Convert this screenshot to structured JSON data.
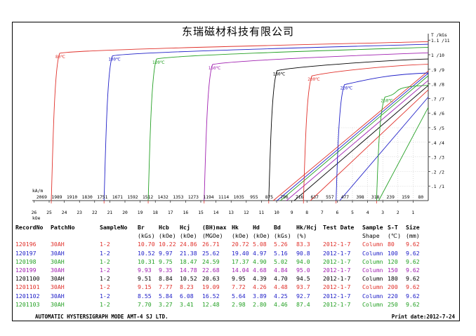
{
  "title": "东瑞磁材科技有限公司",
  "chart_data": {
    "type": "line",
    "xlabel_top": "kA/m",
    "xlabel_bottom": "kOe",
    "ylabel": "T /kGs",
    "x_ticks_kOe": [
      "26",
      "25",
      "24",
      "23",
      "22",
      "21",
      "20",
      "19",
      "18",
      "17",
      "16",
      "15",
      "14",
      "13",
      "12",
      "11",
      "10",
      "9",
      "8",
      "7",
      "6",
      "5",
      "4",
      "3",
      "2",
      "1"
    ],
    "x_ticks_kAm": [
      "2069",
      "1989",
      "1910",
      "1830",
      "1751",
      "1671",
      "1592",
      "1512",
      "1432",
      "1353",
      "1273",
      "1194",
      "1114",
      "1035",
      "955",
      "875",
      "796",
      "716",
      "637",
      "557",
      "477",
      "398",
      "318",
      "239",
      "159",
      "80"
    ],
    "y_ticks": [
      "1.1 /11",
      "1 /10",
      ".9 /9",
      ".8 /8",
      ".7 /7",
      ".6 /6",
      ".5 /5",
      ".4 /4",
      ".3 /3",
      ".2 /2",
      ".1 /1"
    ],
    "ylim": [
      0,
      1.2
    ],
    "xlim_kOe": [
      0,
      26
    ],
    "series": [
      {
        "name": "80℃",
        "color": "#e0302a",
        "br": 10.7,
        "hcb": 10.22,
        "hcj": 24.86
      },
      {
        "name": "100℃",
        "color": "#2020c8",
        "br": 10.52,
        "hcb": 9.97,
        "hcj": 21.38
      },
      {
        "name": "120℃",
        "color": "#23a023",
        "br": 10.31,
        "hcb": 9.75,
        "hcj": 18.47
      },
      {
        "name": "150℃",
        "color": "#a020b0",
        "br": 9.93,
        "hcb": 9.35,
        "hcj": 14.78
      },
      {
        "name": "180℃",
        "color": "#000000",
        "br": 9.51,
        "hcb": 8.84,
        "hcj": 10.52
      },
      {
        "name": "200℃",
        "color": "#e0302a",
        "br": 9.15,
        "hcb": 7.77,
        "hcj": 8.23
      },
      {
        "name": "220℃",
        "color": "#2020c8",
        "br": 8.55,
        "hcb": 5.84,
        "hcj": 6.08
      },
      {
        "name": "250℃",
        "color": "#23a023",
        "br": 7.7,
        "hcb": 3.27,
        "hcj": 3.41
      }
    ]
  },
  "table": {
    "headers": [
      "RecordNo",
      "PatchNo",
      "SampleNo",
      "Br",
      "Hcb",
      "Hcj",
      "(BH)max",
      "Hk",
      "Hd",
      "Bd",
      "Hk/Hcj",
      "Test Date",
      "Sample",
      "S-T",
      "Size"
    ],
    "subheaders": [
      "",
      "",
      "",
      "(kGs)",
      "(kOe)",
      "(kOe)",
      "(MGOe)",
      "(kOe)",
      "(kOe)",
      "(kGs)",
      "(%)",
      "",
      "Shape",
      "(℃)",
      "(mm)"
    ],
    "rows": [
      {
        "color": "#e0302a",
        "cells": [
          "120196",
          "30AH",
          "1-2",
          "10.70",
          "10.22",
          "24.86",
          "26.71",
          "20.72",
          "5.08",
          "5.26",
          "83.3",
          "2012-1-7",
          "Column",
          "80",
          "9.62"
        ]
      },
      {
        "color": "#2020c8",
        "cells": [
          "120197",
          "30AH",
          "1-2",
          "10.52",
          "9.97",
          "21.38",
          "25.62",
          "19.40",
          "4.97",
          "5.16",
          "90.8",
          "2012-1-7",
          "Column",
          "100",
          "9.62"
        ]
      },
      {
        "color": "#23a023",
        "cells": [
          "120198",
          "30AH",
          "1-2",
          "10.31",
          "9.75",
          "18.47",
          "24.59",
          "17.37",
          "4.90",
          "5.02",
          "94.0",
          "2012-1-7",
          "Column",
          "120",
          "9.62"
        ]
      },
      {
        "color": "#a020b0",
        "cells": [
          "120199",
          "30AH",
          "1-2",
          "9.93",
          "9.35",
          "14.78",
          "22.68",
          "14.04",
          "4.68",
          "4.84",
          "95.0",
          "2012-1-7",
          "Column",
          "150",
          "9.62"
        ]
      },
      {
        "color": "#000000",
        "cells": [
          "1201100",
          "30AH",
          "1-2",
          "9.51",
          "8.84",
          "10.52",
          "20.63",
          "9.95",
          "4.39",
          "4.70",
          "94.5",
          "2012-1-7",
          "Column",
          "180",
          "9.62"
        ]
      },
      {
        "color": "#e0302a",
        "cells": [
          "1201101",
          "30AH",
          "1-2",
          "9.15",
          "7.77",
          "8.23",
          "19.09",
          "7.72",
          "4.26",
          "4.48",
          "93.7",
          "2012-1-7",
          "Column",
          "200",
          "9.62"
        ]
      },
      {
        "color": "#2020c8",
        "cells": [
          "1201102",
          "30AH",
          "1-2",
          "8.55",
          "5.84",
          "6.08",
          "16.52",
          "5.64",
          "3.89",
          "4.25",
          "92.7",
          "2012-1-7",
          "Column",
          "220",
          "9.62"
        ]
      },
      {
        "color": "#23a023",
        "cells": [
          "1201103",
          "30AH",
          "1-2",
          "7.70",
          "3.27",
          "3.41",
          "12.48",
          "2.98",
          "2.80",
          "4.46",
          "87.4",
          "2012-1-7",
          "Column",
          "250",
          "9.62"
        ]
      }
    ]
  },
  "footer": {
    "left": "AUTOMATIC  HYSTERSIGRAPH  MODE  AMT-4      SJ  LTD.",
    "right": "Print date:2012-7-24"
  }
}
